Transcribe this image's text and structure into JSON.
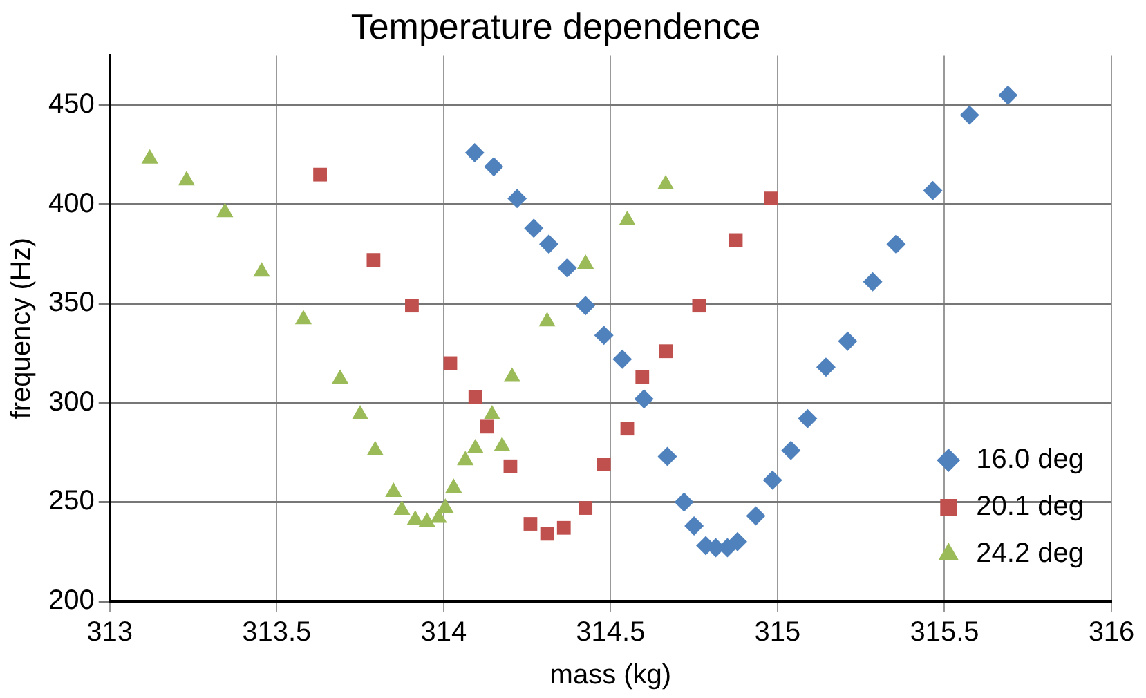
{
  "chart_data": {
    "type": "scatter",
    "title": "Temperature dependence",
    "xlabel": "mass (kg)",
    "ylabel": "frequency (Hz)",
    "xlim": [
      313,
      316
    ],
    "xticks": [
      313,
      313.5,
      314,
      314.5,
      315,
      315.5,
      316
    ],
    "ylim": [
      200,
      475
    ],
    "yticks": [
      200,
      250,
      300,
      350,
      400,
      450
    ],
    "grid": true,
    "legend": "bottom right",
    "series": [
      {
        "name": "16.0 deg",
        "color": "#4f81bd",
        "marker": "diamond",
        "x": [
          314.093,
          314.15,
          314.22,
          314.27,
          314.315,
          314.37,
          314.425,
          314.48,
          314.535,
          314.6,
          314.67,
          314.72,
          314.75,
          314.785,
          314.815,
          314.85,
          314.88,
          314.935,
          314.985,
          315.04,
          315.09,
          315.145,
          315.21,
          315.285,
          315.355,
          315.465,
          315.575,
          315.69
        ],
        "values": [
          426,
          419,
          403,
          388,
          380,
          368,
          349,
          334,
          322,
          302,
          273,
          250,
          238,
          228,
          227,
          227,
          230,
          243,
          261,
          276,
          292,
          318,
          331,
          361,
          380,
          407,
          445,
          455
        ]
      },
      {
        "name": "20.1 deg",
        "color": "#c0504d",
        "marker": "square",
        "x": [
          313.63,
          313.79,
          313.905,
          314.02,
          314.095,
          314.13,
          314.2,
          314.26,
          314.31,
          314.36,
          314.425,
          314.48,
          314.55,
          314.595,
          314.665,
          314.765,
          314.875,
          314.98
        ],
        "values": [
          415,
          372,
          349,
          320,
          303,
          288,
          268,
          239,
          234,
          237,
          247,
          269,
          287,
          313,
          326,
          349,
          382,
          403
        ]
      },
      {
        "name": "24.2 deg",
        "color": "#9bbb59",
        "marker": "triangle",
        "x": [
          313.12,
          313.23,
          313.345,
          313.455,
          313.58,
          313.69,
          313.75,
          313.795,
          313.85,
          313.875,
          313.915,
          313.95,
          313.985,
          314.005,
          314.03,
          314.065,
          314.095,
          314.145,
          314.175,
          314.205,
          314.31,
          314.425,
          314.55,
          314.665
        ],
        "values": [
          423,
          412,
          396,
          366,
          342,
          312,
          294,
          276,
          255,
          246,
          241,
          240,
          242,
          247,
          257,
          271,
          277,
          294,
          278,
          313,
          341,
          370,
          392,
          410
        ]
      }
    ]
  }
}
